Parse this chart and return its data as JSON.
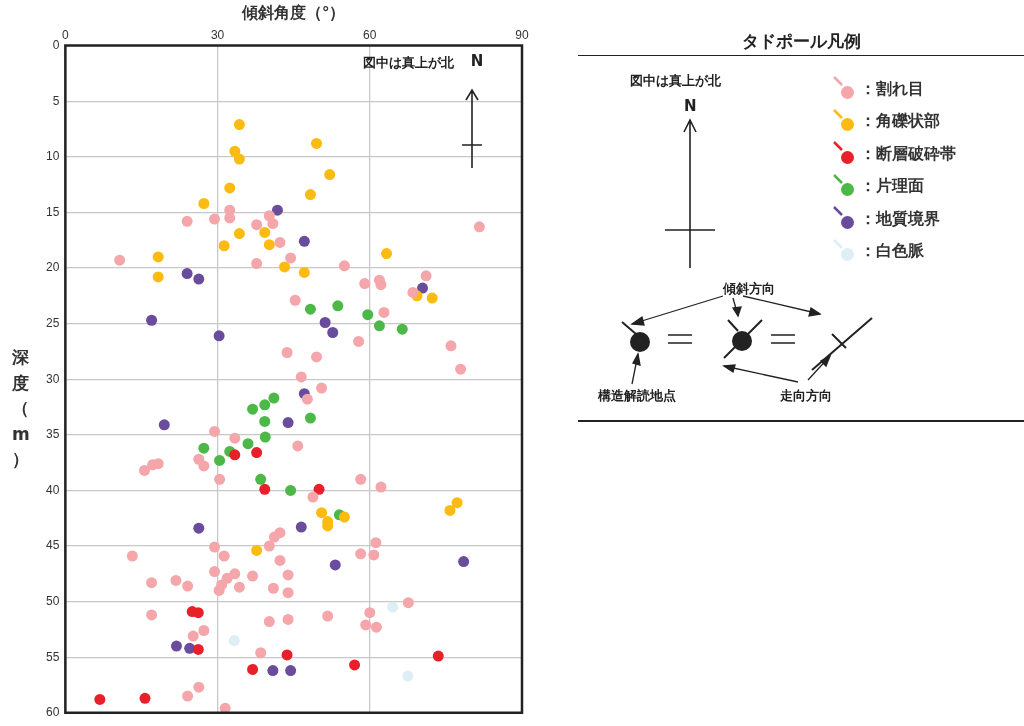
{
  "chart_data": {
    "type": "scatter",
    "xlabel": "傾斜角度（°）",
    "ylabel": "深度（m）",
    "legend_title": "タドポール凡例",
    "legend": "right",
    "grid": true,
    "marker": "circle",
    "xlim": [
      0,
      90
    ],
    "xticks": [
      0,
      30,
      60,
      90
    ],
    "ylim": [
      60,
      0
    ],
    "yticks": [
      0,
      5,
      10,
      15,
      20,
      25,
      30,
      35,
      40,
      45,
      50,
      55,
      60
    ],
    "annotations": [
      "図中は真上が北",
      "N",
      "図中は真上が北",
      "N",
      "傾斜方向",
      "構造解読地点",
      "走向方向"
    ],
    "series": [
      {
        "name": "：割れ目",
        "color": "#f4a6ab",
        "x": [
          32.4,
          24,
          29.4,
          32.4,
          40.2,
          40.9,
          37.7,
          42.3,
          81.6,
          10.7,
          37.7,
          44.4,
          55,
          59,
          61.9,
          62.2,
          71.1,
          68.5,
          45.3,
          62.8,
          57.8,
          76,
          77.9,
          43.7,
          49.5,
          46.5,
          50.5,
          47.7,
          29.4,
          33.4,
          45.8,
          26.3,
          18.3,
          17.2,
          15.6,
          27.3,
          30.4,
          58.2,
          62.2,
          48.8,
          42.3,
          41.2,
          40.2,
          29.4,
          61.2,
          58.2,
          60.8,
          31.3,
          13.2,
          42.3,
          17,
          21.8,
          24.1,
          29.4,
          31.9,
          33.4,
          30.8,
          30.3,
          34.3,
          36.9,
          41,
          43.9,
          43.9,
          17,
          25.2,
          27.3,
          40.2,
          43.9,
          51.7,
          60,
          59.2,
          61.3,
          67.6,
          38.5,
          26.3,
          24.1,
          31.5
        ],
        "values": [
          14.8,
          15.8,
          15.6,
          15.5,
          15.3,
          16,
          16.1,
          17.7,
          16.3,
          19.3,
          19.6,
          19.1,
          19.8,
          21.4,
          21.1,
          21.5,
          20.7,
          22.2,
          22.9,
          24,
          26.6,
          27,
          29.1,
          27.6,
          28,
          29.8,
          30.8,
          31.8,
          34.7,
          35.3,
          36,
          37.2,
          37.6,
          37.7,
          38.2,
          37.8,
          39,
          39,
          39.7,
          40.6,
          43.8,
          44.2,
          45,
          45.1,
          44.7,
          45.7,
          45.8,
          45.9,
          45.9,
          46.3,
          48.3,
          48.1,
          48.6,
          47.3,
          47.9,
          47.5,
          48.5,
          49,
          48.7,
          47.7,
          48.8,
          47.6,
          49.2,
          51.2,
          53.1,
          52.6,
          51.8,
          51.6,
          51.3,
          51,
          52.1,
          52.3,
          50.1,
          54.6,
          57.7,
          58.5,
          59.6
        ]
      },
      {
        "name": "：角礫状部",
        "color": "#fbbb10",
        "x": [
          34.3,
          49.5,
          33.4,
          34.3,
          52.1,
          48.3,
          32.4,
          27.3,
          34.3,
          39.3,
          40.2,
          31.3,
          18.3,
          18.3,
          43.2,
          47.1,
          63.3,
          69.3,
          72.3,
          50.5,
          55,
          51.7,
          51.7,
          77.2,
          75.8,
          37.7
        ],
        "values": [
          7.1,
          8.8,
          9.5,
          10.2,
          11.6,
          13.4,
          12.8,
          14.2,
          16.9,
          16.8,
          17.9,
          18,
          19,
          20.8,
          19.9,
          20.4,
          18.7,
          22.5,
          22.7,
          42,
          42.4,
          42.8,
          43.2,
          41.1,
          41.8,
          45.4
        ]
      },
      {
        "name": "：断層破砕帯",
        "color": "#e8202a",
        "x": [
          33.4,
          37.7,
          39.3,
          50,
          25,
          26.2,
          26.2,
          43.7,
          36.9,
          57,
          73.5,
          6.8,
          15.7
        ],
        "values": [
          36.8,
          36.6,
          39.9,
          39.9,
          50.9,
          51,
          54.3,
          54.8,
          56.1,
          55.7,
          54.9,
          58.8,
          58.7
        ]
      },
      {
        "name": "：片理面",
        "color": "#4cb848",
        "x": [
          48.3,
          53.7,
          59.6,
          61.9,
          66.4,
          41.1,
          39.3,
          36.9,
          39.3,
          48.3,
          39.4,
          27.3,
          32.4,
          36,
          30.4,
          38.5,
          44.4,
          54
        ],
        "values": [
          23.7,
          23.4,
          24.2,
          25.2,
          25.5,
          31.7,
          32.3,
          32.7,
          33.8,
          33.5,
          35.2,
          36.2,
          36.5,
          35.8,
          37.3,
          39,
          40,
          42.2
        ]
      },
      {
        "name": "：地質境界",
        "color": "#6a4c9c",
        "x": [
          41.8,
          47.1,
          24,
          26.3,
          70.4,
          17,
          51.2,
          52.7,
          30.3,
          47.1,
          19.5,
          43.9,
          26.3,
          46.5,
          78.5,
          53.2,
          21.9,
          24.5,
          40.9,
          44.4
        ],
        "values": [
          14.8,
          17.6,
          20.5,
          21,
          21.8,
          24.7,
          24.9,
          25.8,
          26.1,
          31.3,
          34.1,
          33.9,
          43.4,
          43.3,
          46.4,
          46.7,
          54,
          54.2,
          56.2,
          56.2
        ]
      },
      {
        "name": "：白色脈",
        "color": "#ddeef4",
        "x": [
          64.5,
          33.3,
          67.5
        ],
        "values": [
          50.5,
          53.5,
          56.7
        ]
      }
    ]
  }
}
